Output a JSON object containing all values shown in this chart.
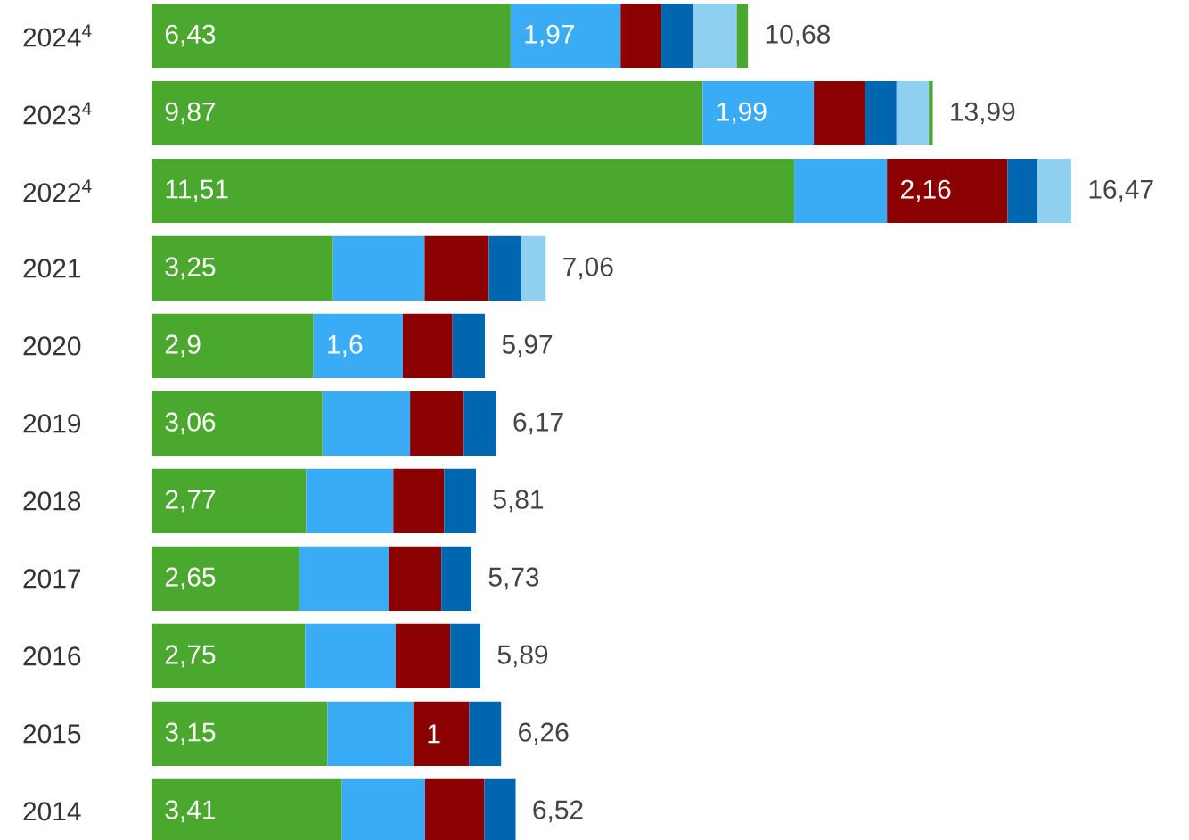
{
  "chart_data": {
    "type": "bar",
    "orientation": "horizontal",
    "stacked": true,
    "categories": [
      "2024$^{4}$",
      "2023$^{4}$",
      "2022$^{4}$",
      "2021",
      "2020",
      "2019",
      "2018",
      "2017",
      "2016",
      "2015",
      "2014"
    ],
    "series": [
      {
        "color": "#4ba82e",
        "values": [
          6.43,
          9.87,
          11.51,
          3.25,
          2.9,
          3.06,
          2.77,
          2.65,
          2.75,
          3.15,
          3.41
        ],
        "value_labels": [
          "6,43",
          "9,87",
          "11,51",
          "3,25",
          "2,9",
          "3,06",
          "2,77",
          "2,65",
          "2,75",
          "3,15",
          "3,41"
        ]
      },
      {
        "color": "#3aabf5",
        "values": [
          1.97,
          1.99,
          1.66,
          1.64,
          1.6,
          1.57,
          1.56,
          1.6,
          1.62,
          1.54,
          1.49
        ],
        "value_labels": [
          "1,97",
          "1,99",
          null,
          null,
          "1,6",
          null,
          null,
          null,
          null,
          null,
          null
        ]
      },
      {
        "color": "#8b0000",
        "values": [
          0.73,
          0.92,
          2.16,
          1.15,
          0.89,
          0.96,
          0.91,
          0.94,
          0.98,
          1,
          1.06
        ],
        "value_labels": [
          null,
          null,
          "2,16",
          null,
          null,
          null,
          null,
          null,
          null,
          "1",
          null
        ]
      },
      {
        "color": "#0066b0",
        "values": [
          0.56,
          0.56,
          0.54,
          0.58,
          0.58,
          0.58,
          0.57,
          0.54,
          0.54,
          0.57,
          0.56
        ]
      },
      {
        "color": "#8fd0f0",
        "values": [
          0.79,
          0.58,
          0.6,
          0.44,
          null,
          null,
          null,
          null,
          null,
          null,
          null
        ]
      },
      {
        "color": "#4ba82e",
        "values": [
          0.2,
          0.07,
          null,
          null,
          null,
          null,
          null,
          null,
          null,
          null,
          null
        ]
      }
    ],
    "totals": [
      "10,68",
      "13,99",
      "16,47",
      "7,06",
      "5,97",
      "6,17",
      "5,81",
      "5,73",
      "5,89",
      "6,26",
      "6,52"
    ],
    "grid": false
  }
}
